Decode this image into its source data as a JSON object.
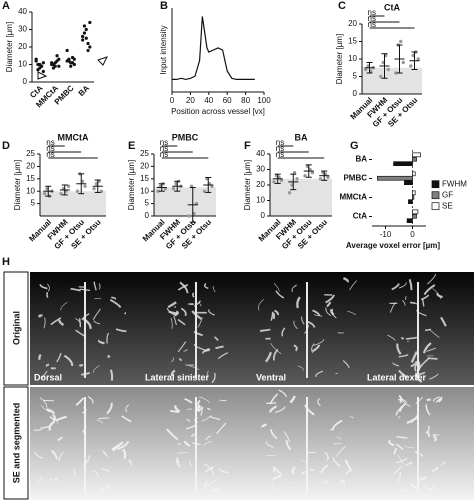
{
  "panel_labels": [
    "A",
    "B",
    "C",
    "D",
    "E",
    "F",
    "G",
    "H"
  ],
  "chart_data": [
    {
      "type": "strip",
      "ylabel": "Diameter [µm]",
      "categories": [
        "CtA",
        "MMCtA",
        "PMBC",
        "BA"
      ],
      "values": [
        [
          12,
          10,
          8,
          9,
          11,
          13,
          7,
          10,
          9,
          6
        ],
        [
          11,
          10,
          9,
          12,
          13,
          10,
          8,
          11,
          15,
          9
        ],
        [
          12,
          13,
          11,
          14,
          10,
          18,
          12,
          9,
          11,
          13
        ],
        [
          24,
          28,
          30,
          22,
          20,
          26,
          32,
          25,
          18,
          34
        ]
      ],
      "color": "#111111",
      "ylim": [
        0,
        40
      ],
      "yticks": [
        0,
        10,
        20,
        30,
        40
      ]
    },
    {
      "type": "line",
      "xlabel": "Position across vessel [vx]",
      "ylabel": "Input intensity",
      "x": [
        0,
        5,
        10,
        15,
        20,
        25,
        30,
        33,
        35,
        38,
        40,
        45,
        50,
        55,
        60,
        65,
        70,
        75,
        80,
        85,
        90
      ],
      "values": [
        0.12,
        0.12,
        0.13,
        0.12,
        0.13,
        0.15,
        0.3,
        0.72,
        0.6,
        0.42,
        0.38,
        0.4,
        0.42,
        0.4,
        0.2,
        0.13,
        0.12,
        0.12,
        0.12,
        0.12,
        0.12
      ],
      "color": "#111111",
      "xlim": [
        0,
        100
      ],
      "xticks": [
        0,
        20,
        40,
        60,
        80,
        100
      ],
      "ylim": [
        0,
        0.8
      ]
    },
    {
      "type": "errorbar",
      "title": "CtA",
      "ylabel": "Diameter [µm]",
      "categories": [
        "Manual",
        "FWHM",
        "GF + Otsu",
        "SE + Otsu"
      ],
      "values": [
        7.5,
        8,
        10,
        9.5
      ],
      "errors": [
        1.5,
        3.5,
        4,
        2.5
      ],
      "points": [
        [
          7,
          8,
          6.5,
          7.5
        ],
        [
          5,
          9,
          11,
          7
        ],
        [
          6,
          14,
          15,
          9
        ],
        [
          8,
          11,
          12,
          10
        ]
      ],
      "annotations": [
        "ns",
        "ns",
        "ns"
      ],
      "ylim": [
        0,
        20
      ],
      "yticks": [
        0,
        5,
        10,
        15,
        20
      ]
    },
    {
      "type": "errorbar",
      "title": "MMCtA",
      "ylabel": "Diameter [µm]",
      "categories": [
        "Manual",
        "FWHM",
        "GF + Otsu",
        "SE + Otsu"
      ],
      "values": [
        10,
        10.5,
        13,
        12
      ],
      "errors": [
        2,
        2,
        4,
        2.5
      ],
      "points": [
        [
          9,
          11,
          8,
          10
        ],
        [
          9,
          11,
          10,
          12
        ],
        [
          10,
          17,
          14,
          12
        ],
        [
          11,
          13,
          14,
          10
        ]
      ],
      "annotations": [
        "ns",
        "ns",
        "ns"
      ],
      "ylim": [
        0,
        25
      ],
      "yticks": [
        5,
        10,
        15,
        20,
        25
      ]
    },
    {
      "type": "errorbar",
      "title": "PMBC",
      "ylabel": "Diameter [µm]",
      "categories": [
        "Manual",
        "FWHM",
        "GF + Otsu",
        "SE + Otsu"
      ],
      "values": [
        11.5,
        12,
        4.5,
        12.5
      ],
      "errors": [
        1.5,
        2,
        7,
        3
      ],
      "points": [
        [
          10,
          12,
          13,
          11
        ],
        [
          11,
          13,
          14,
          12
        ],
        [
          0,
          12,
          1,
          5
        ],
        [
          10,
          15,
          13,
          12
        ]
      ],
      "annotations": [
        "ns",
        "ns",
        "ns"
      ],
      "ylim": [
        0,
        25
      ],
      "yticks": [
        0,
        5,
        10,
        15,
        20,
        25
      ]
    },
    {
      "type": "errorbar",
      "title": "BA",
      "ylabel": "Diameter [µm]",
      "categories": [
        "Manual",
        "FWHM",
        "GF + Otsu",
        "SE + Otsu"
      ],
      "values": [
        24,
        22,
        29,
        26
      ],
      "errors": [
        3,
        5,
        4,
        3
      ],
      "points": [
        [
          22,
          26,
          25,
          23
        ],
        [
          15,
          20,
          28,
          24
        ],
        [
          26,
          32,
          30,
          28
        ],
        [
          24,
          28,
          27,
          25
        ]
      ],
      "annotations": [
        "ns",
        "ns",
        "ns"
      ],
      "ylim": [
        0,
        40
      ],
      "yticks": [
        0,
        10,
        20,
        30,
        40
      ]
    },
    {
      "type": "hbar",
      "xlabel": "Average voxel error [µm]",
      "categories": [
        "BA",
        "PMBC",
        "MMCtA",
        "CtA"
      ],
      "series": [
        {
          "name": "FWHM",
          "color": "#111111",
          "values": [
            -7,
            -3,
            -1.5,
            -2
          ]
        },
        {
          "name": "GF",
          "color": "#808080",
          "values": [
            1.5,
            -13,
            0.5,
            1.5
          ]
        },
        {
          "name": "SE",
          "color": "#ffffff",
          "values": [
            3,
            1,
            1,
            2
          ]
        }
      ],
      "xlim": [
        -15,
        5
      ],
      "xticks": [
        -10,
        0
      ]
    }
  ],
  "image_panel": {
    "rows": [
      "Original",
      "SE and segmented"
    ],
    "views": [
      "Dorsal",
      "Lateral sinister",
      "Ventral",
      "Lateral dexter"
    ]
  }
}
